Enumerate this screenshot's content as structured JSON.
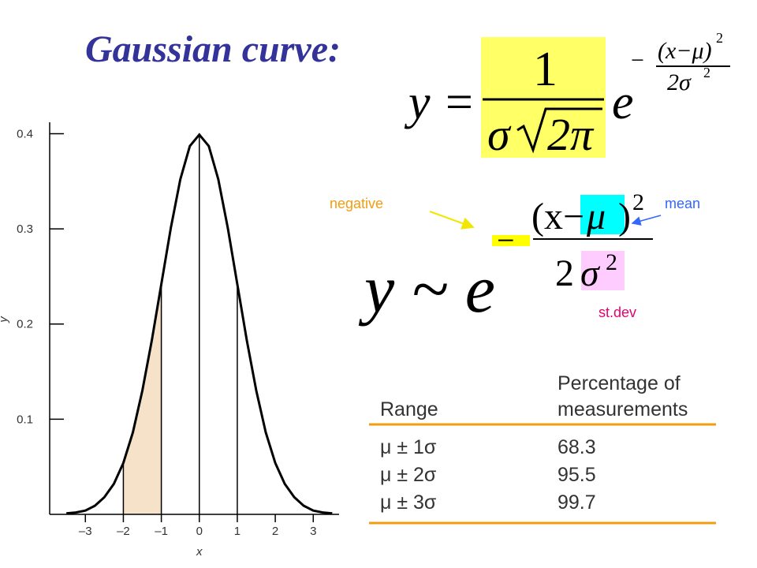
{
  "header": {
    "title": "Gaussian curve:"
  },
  "formula_1": {
    "lhs": "y =",
    "numerator": "1",
    "denominator_sigma": "σ",
    "denominator_root": "2π",
    "base": "e",
    "exponent_sign": "−",
    "exponent_numerator": "(x−μ)",
    "exponent_numerator_power": "2",
    "exponent_denominator": "2σ",
    "exponent_denominator_power": "2"
  },
  "formula_2": {
    "lhs": "y ~ e",
    "sign": "−",
    "numerator_open": "(x−",
    "mu": "μ",
    "numerator_close": ")",
    "power": "2",
    "denominator_two": "2",
    "sigma": "σ",
    "sigma_power": "2"
  },
  "annotations": {
    "negative": "negative",
    "mean": "mean",
    "stdev": "st.dev"
  },
  "table": {
    "columns": [
      [
        "Range"
      ],
      [
        "Percentage of",
        "measurements"
      ]
    ],
    "rows": [
      [
        "μ ± 1σ",
        68.3
      ],
      [
        "μ ± 2σ",
        95.5
      ],
      [
        "μ ± 3σ",
        99.7
      ]
    ]
  },
  "chart_data": {
    "type": "line",
    "x_label": "x",
    "y_label": "y",
    "x": [
      -3.5,
      -3.25,
      -3,
      -2.75,
      -2.5,
      -2.25,
      -2,
      -1.75,
      -1.5,
      -1.25,
      -1,
      -0.75,
      -0.5,
      -0.25,
      0,
      0.25,
      0.5,
      0.75,
      1,
      1.25,
      1.5,
      1.75,
      2,
      2.25,
      2.5,
      2.75,
      3,
      3.25,
      3.5
    ],
    "values": [
      0.001,
      0.002,
      0.004,
      0.009,
      0.018,
      0.032,
      0.054,
      0.086,
      0.13,
      0.183,
      0.242,
      0.301,
      0.352,
      0.387,
      0.399,
      0.387,
      0.352,
      0.301,
      0.242,
      0.183,
      0.13,
      0.086,
      0.054,
      0.032,
      0.018,
      0.009,
      0.004,
      0.002,
      0.001
    ],
    "color": "#000000",
    "shaded_range": [
      -2,
      -1
    ],
    "shade_color": "#f6e2c8",
    "reference_lines": [
      -2,
      -1,
      0,
      1
    ],
    "xlim": [
      -3.94,
      3.68
    ],
    "ylim": [
      0,
      0.412
    ],
    "xticks": [
      {
        "value": -3,
        "label": "–3"
      },
      {
        "value": -2,
        "label": "–2"
      },
      {
        "value": -1,
        "label": "–1"
      },
      0,
      1,
      2,
      3
    ],
    "yticks": [
      0.1,
      0.2,
      0.3,
      0.4
    ]
  }
}
